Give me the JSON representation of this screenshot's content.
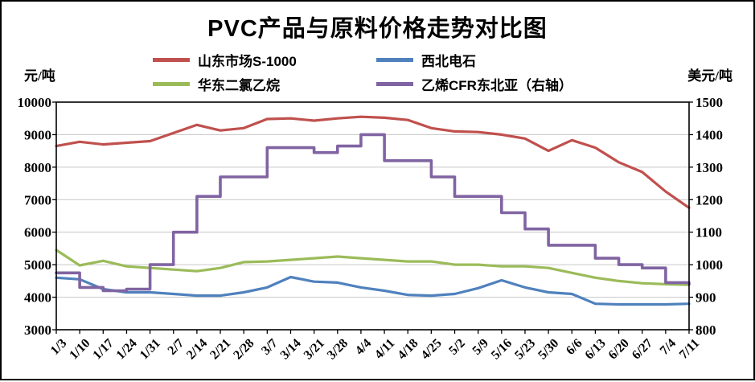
{
  "chart_data": {
    "type": "line",
    "title": "PVC产品与原料价格走势对比图",
    "left_axis": {
      "unit": "元/吨",
      "min": 3000,
      "max": 10000,
      "step": 1000,
      "ticks": [
        3000,
        4000,
        5000,
        6000,
        7000,
        8000,
        9000,
        10000
      ]
    },
    "right_axis": {
      "unit": "美元/吨",
      "min": 800,
      "max": 1500,
      "step": 100,
      "ticks": [
        800,
        900,
        1000,
        1100,
        1200,
        1300,
        1400,
        1500
      ]
    },
    "grid": {
      "color": "#C6C6C6"
    },
    "legend_position": "top",
    "categories": [
      "1/3",
      "1/10",
      "1/17",
      "1/24",
      "1/31",
      "2/7",
      "2/14",
      "2/21",
      "2/28",
      "3/7",
      "3/14",
      "3/21",
      "3/28",
      "4/4",
      "4/11",
      "4/18",
      "4/25",
      "5/2",
      "5/9",
      "5/16",
      "5/23",
      "5/30",
      "6/6",
      "6/13",
      "6/20",
      "6/27",
      "7/4",
      "7/11"
    ],
    "series": [
      {
        "name": "山东市场S-1000",
        "axis": "left",
        "color": "#C0504D",
        "width": 3.2,
        "interpolation": "linear",
        "values": [
          8650,
          8780,
          8700,
          8750,
          8800,
          9050,
          9300,
          9130,
          9200,
          9480,
          9500,
          9430,
          9500,
          9550,
          9520,
          9450,
          9200,
          9100,
          9080,
          9000,
          8880,
          8500,
          8830,
          8600,
          8150,
          7850,
          7250,
          6750
        ]
      },
      {
        "name": "西北电石",
        "axis": "left",
        "color": "#4F81BD",
        "width": 3.2,
        "interpolation": "linear",
        "values": [
          4600,
          4550,
          4250,
          4150,
          4150,
          4100,
          4050,
          4050,
          4150,
          4300,
          4620,
          4480,
          4450,
          4300,
          4200,
          4070,
          4050,
          4100,
          4280,
          4520,
          4300,
          4150,
          4100,
          3800,
          3780,
          3780,
          3780,
          3800
        ]
      },
      {
        "name": "华东二氯乙烷",
        "axis": "left",
        "color": "#9BBB59",
        "width": 3.2,
        "interpolation": "linear",
        "values": [
          5450,
          4980,
          5120,
          4950,
          4900,
          4850,
          4800,
          4900,
          5080,
          5100,
          5150,
          5200,
          5250,
          5200,
          5150,
          5100,
          5100,
          5000,
          5000,
          4950,
          4950,
          4900,
          4750,
          4600,
          4500,
          4430,
          4400,
          4380
        ]
      },
      {
        "name": "乙烯CFR东北亚（右轴）",
        "axis": "right",
        "color": "#8064A2",
        "width": 3.6,
        "interpolation": "step",
        "values": [
          975,
          930,
          920,
          925,
          1000,
          1100,
          1210,
          1270,
          1270,
          1360,
          1360,
          1345,
          1365,
          1400,
          1320,
          1320,
          1270,
          1210,
          1210,
          1160,
          1110,
          1060,
          1060,
          1020,
          1000,
          990,
          945,
          940
        ]
      }
    ]
  }
}
